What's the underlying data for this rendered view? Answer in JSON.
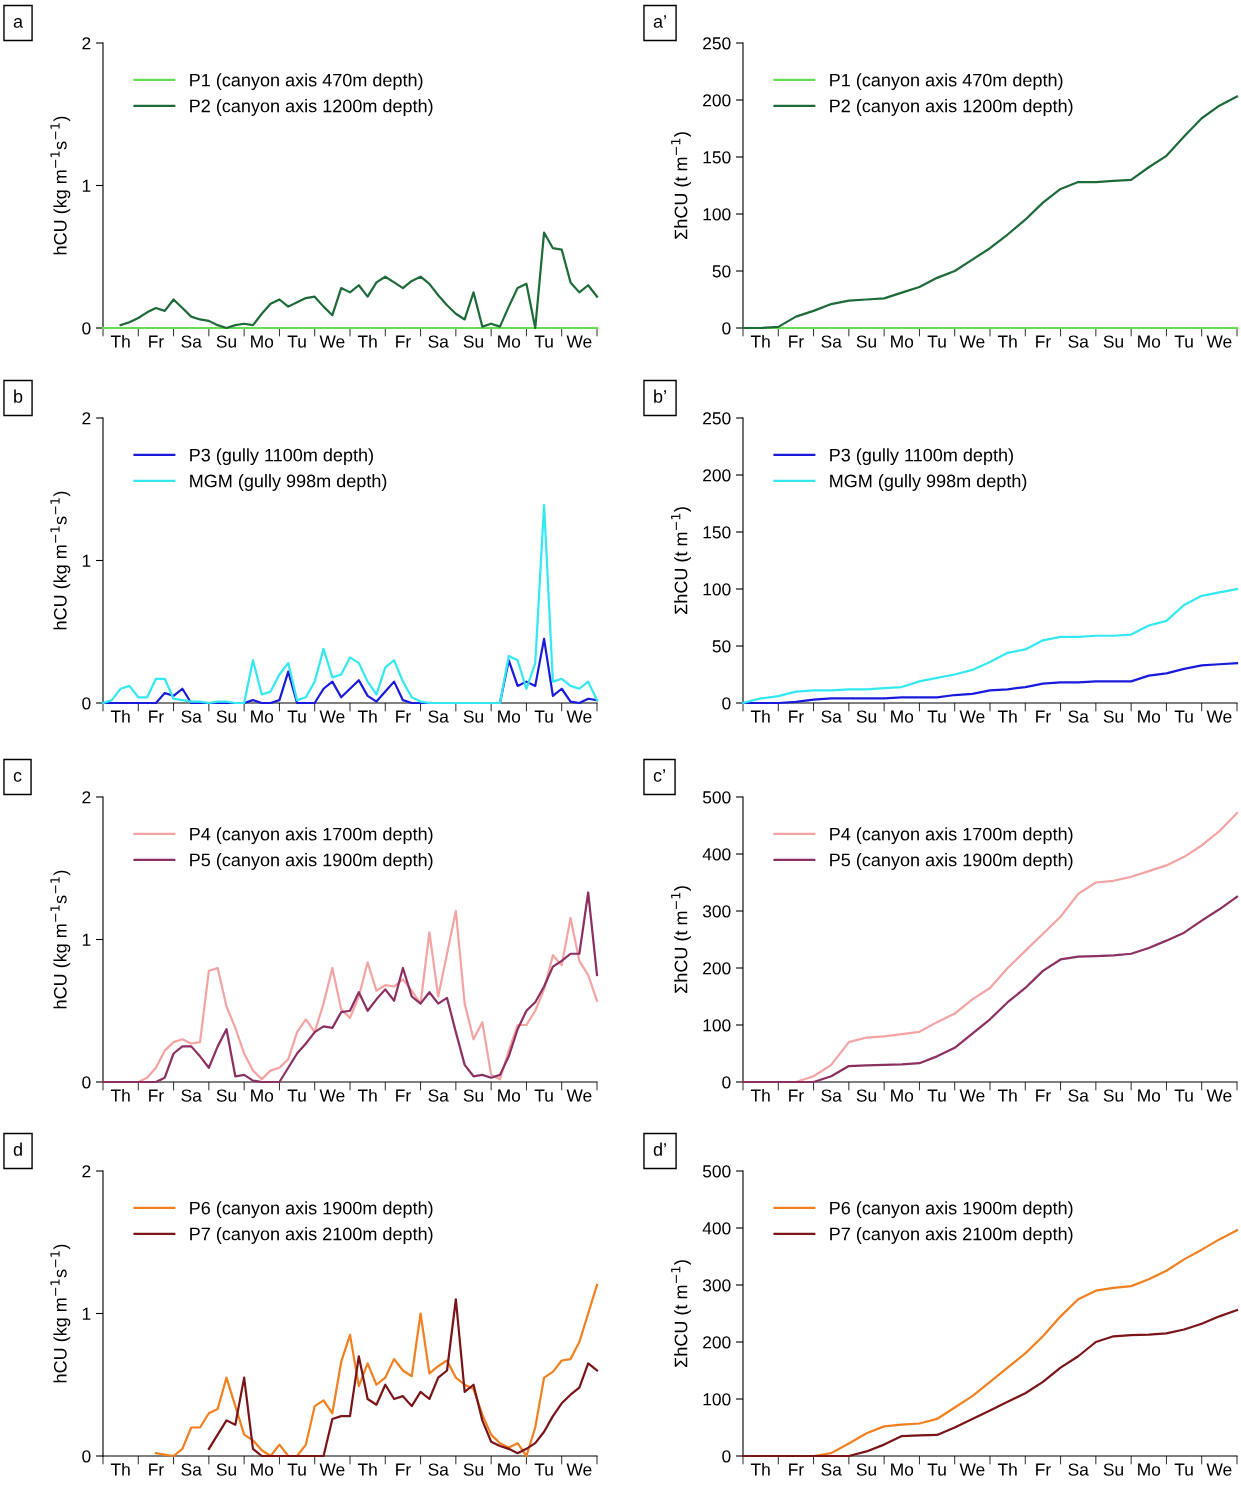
{
  "chart_data": [
    {
      "type": "line",
      "annotations": [
        "a"
      ],
      "ylabel": "hCU (kg m$^{−1}$s$^{−1}$)",
      "ylim": [
        0,
        2
      ],
      "yticks": [
        0,
        1,
        2
      ],
      "legend": "top left",
      "categories": [
        null,
        null,
        "Th",
        null,
        null,
        null,
        "Fr",
        null,
        null,
        null,
        "Sa",
        null,
        null,
        null,
        "Su",
        null,
        null,
        null,
        "Mo",
        null,
        null,
        null,
        "Tu",
        null,
        null,
        null,
        "We",
        null,
        null,
        null,
        "Th",
        null,
        null,
        null,
        "Fr",
        null,
        null,
        null,
        "Sa",
        null,
        null,
        null,
        "Su",
        null,
        null,
        null,
        "Mo",
        null,
        null,
        null,
        "Tu",
        null,
        null,
        null,
        "We",
        null,
        null
      ],
      "series": [
        {
          "name": "P1 (canyon axis 470m depth)",
          "color": "#66dd55",
          "values": [
            0,
            0,
            0,
            0,
            0,
            0,
            0,
            0,
            0,
            0,
            0,
            0,
            0,
            0,
            0,
            0,
            0,
            0,
            0,
            0,
            0,
            0,
            0,
            0,
            0,
            0,
            0,
            0,
            0,
            0,
            0,
            0,
            0,
            0,
            0,
            0,
            0,
            0,
            0,
            0,
            0,
            0,
            0,
            0,
            0,
            0,
            0,
            0,
            0,
            0,
            0,
            0,
            0,
            0,
            0,
            0,
            0
          ]
        },
        {
          "name": "P2 (canyon axis 1200m depth)",
          "color": "#1e6b3a",
          "values": [
            null,
            null,
            0.02,
            0.04,
            0.07,
            0.11,
            0.14,
            0.12,
            0.2,
            0.14,
            0.08,
            0.06,
            0.05,
            0.02,
            0,
            0.02,
            0.03,
            0.02,
            0.1,
            0.17,
            0.2,
            0.15,
            0.18,
            0.21,
            0.22,
            0.15,
            0.09,
            0.28,
            0.25,
            0.3,
            0.22,
            0.32,
            0.36,
            0.32,
            0.28,
            0.33,
            0.36,
            0.31,
            0.23,
            0.16,
            0.1,
            0.06,
            0.25,
            0.01,
            0.03,
            0.01,
            0.15,
            0.28,
            0.31,
            0,
            0.67,
            0.56,
            0.55,
            0.32,
            0.25,
            0.3,
            0.22
          ]
        }
      ]
    },
    {
      "type": "line",
      "annotations": [
        "a’"
      ],
      "ylabel": "ΣhCU (t m$^{−1}$)",
      "ylim": [
        0,
        250
      ],
      "yticks": [
        0,
        50,
        100,
        150,
        200,
        250
      ],
      "legend": "top left",
      "categories": [
        null,
        "Th",
        null,
        "Fr",
        null,
        "Sa",
        null,
        "Su",
        null,
        "Mo",
        null,
        "Tu",
        null,
        "We",
        null,
        "Th",
        null,
        "Fr",
        null,
        "Sa",
        null,
        "Su",
        null,
        "Mo",
        null,
        "Tu",
        null,
        "We",
        null
      ],
      "series": [
        {
          "name": "P1 (canyon axis 470m depth)",
          "color": "#66dd55",
          "values": [
            0,
            0,
            0,
            0,
            0,
            0,
            0,
            0,
            0,
            0,
            0,
            0,
            0,
            0,
            0,
            0,
            0,
            0,
            0,
            0,
            0,
            0,
            0,
            0,
            0,
            0,
            0,
            0,
            0
          ]
        },
        {
          "name": "P2 (canyon axis 1200m depth)",
          "color": "#1e6b3a",
          "values": [
            0,
            0,
            1,
            10,
            15,
            21,
            24,
            25,
            26,
            31,
            36,
            44,
            50,
            60,
            70,
            82,
            95,
            110,
            122,
            128,
            128,
            129,
            130,
            141,
            151,
            168,
            184,
            195,
            203
          ]
        }
      ]
    },
    {
      "type": "line",
      "annotations": [
        "b"
      ],
      "ylabel": "hCU (kg m$^{−1}$s$^{−1}$)",
      "ylim": [
        0,
        2
      ],
      "yticks": [
        0,
        1,
        2
      ],
      "legend": "top left",
      "categories": [
        null,
        null,
        "Th",
        null,
        null,
        null,
        "Fr",
        null,
        null,
        null,
        "Sa",
        null,
        null,
        null,
        "Su",
        null,
        null,
        null,
        "Mo",
        null,
        null,
        null,
        "Tu",
        null,
        null,
        null,
        "We",
        null,
        null,
        null,
        "Th",
        null,
        null,
        null,
        "Fr",
        null,
        null,
        null,
        "Sa",
        null,
        null,
        null,
        "Su",
        null,
        null,
        null,
        "Mo",
        null,
        null,
        null,
        "Tu",
        null,
        null,
        null,
        "We",
        null,
        null
      ],
      "series": [
        {
          "name": "P3 (gully 1100m depth)",
          "color": "#1a1adc",
          "values": [
            0,
            0,
            0,
            0,
            0,
            0,
            0,
            0.07,
            0.05,
            0.1,
            0,
            0,
            0,
            0,
            0,
            0,
            0,
            0.02,
            0,
            0,
            0.02,
            0.22,
            0,
            0,
            0,
            0.1,
            0.15,
            0.04,
            0.1,
            0.16,
            0.05,
            0.01,
            0.08,
            0.15,
            0.02,
            0,
            0,
            0,
            0,
            0,
            0,
            0,
            0,
            0,
            0,
            0,
            0.3,
            0.12,
            0.15,
            0.12,
            0.45,
            0.05,
            0.1,
            0.01,
            0,
            0.03,
            0.02
          ]
        },
        {
          "name": "MGM (gully 998m depth)",
          "color": "#33e8f0",
          "values": [
            0,
            0.02,
            0.1,
            0.12,
            0.04,
            0.04,
            0.17,
            0.17,
            0.03,
            0.02,
            0.01,
            0.01,
            0,
            0.01,
            0.01,
            0,
            0,
            0.3,
            0.06,
            0.08,
            0.2,
            0.28,
            0.02,
            0.04,
            0.15,
            0.38,
            0.18,
            0.2,
            0.32,
            0.28,
            0.15,
            0.06,
            0.25,
            0.3,
            0.15,
            0.04,
            0.01,
            0,
            0,
            0,
            0,
            0,
            0,
            0,
            0,
            0,
            0.33,
            0.3,
            0.1,
            0.28,
            1.39,
            0.15,
            0.17,
            0.12,
            0.1,
            0.15,
            0.02
          ]
        }
      ]
    },
    {
      "type": "line",
      "annotations": [
        "b’"
      ],
      "ylabel": "ΣhCU (t m$^{−1}$)",
      "ylim": [
        0,
        250
      ],
      "yticks": [
        0,
        50,
        100,
        150,
        200,
        250
      ],
      "legend": "top left",
      "categories": [
        null,
        "Th",
        null,
        "Fr",
        null,
        "Sa",
        null,
        "Su",
        null,
        "Mo",
        null,
        "Tu",
        null,
        "We",
        null,
        "Th",
        null,
        "Fr",
        null,
        "Sa",
        null,
        "Su",
        null,
        "Mo",
        null,
        "Tu",
        null,
        "We",
        null
      ],
      "series": [
        {
          "name": "P3 (gully 1100m depth)",
          "color": "#1a1adc",
          "values": [
            0,
            0,
            0,
            1,
            3,
            4,
            4,
            4,
            4,
            5,
            5,
            5,
            7,
            8,
            11,
            12,
            14,
            17,
            18,
            18,
            19,
            19,
            19,
            24,
            26,
            30,
            33,
            34,
            35
          ]
        },
        {
          "name": "MGM (gully 998m depth)",
          "color": "#33e8f0",
          "values": [
            0,
            4,
            6,
            10,
            11,
            11,
            12,
            12,
            13,
            14,
            19,
            22,
            25,
            29,
            36,
            44,
            47,
            55,
            58,
            58,
            59,
            59,
            60,
            68,
            72,
            86,
            94,
            97,
            100
          ]
        }
      ]
    },
    {
      "type": "line",
      "annotations": [
        "c"
      ],
      "ylabel": "hCU (kg m$^{−1}$s$^{−1}$)",
      "ylim": [
        0,
        2
      ],
      "yticks": [
        0,
        1,
        2
      ],
      "legend": "top left",
      "categories": [
        null,
        null,
        "Th",
        null,
        null,
        null,
        "Fr",
        null,
        null,
        null,
        "Sa",
        null,
        null,
        null,
        "Su",
        null,
        null,
        null,
        "Mo",
        null,
        null,
        null,
        "Tu",
        null,
        null,
        null,
        "We",
        null,
        null,
        null,
        "Th",
        null,
        null,
        null,
        "Fr",
        null,
        null,
        null,
        "Sa",
        null,
        null,
        null,
        "Su",
        null,
        null,
        null,
        "Mo",
        null,
        null,
        null,
        "Tu",
        null,
        null,
        null,
        "We",
        null,
        null
      ],
      "series": [
        {
          "name": "P4 (canyon axis 1700m depth)",
          "color": "#f4a3a3",
          "values": [
            null,
            null,
            null,
            0,
            0,
            0.03,
            0.1,
            0.22,
            0.28,
            0.3,
            0.27,
            0.28,
            0.78,
            0.8,
            0.53,
            0.38,
            0.2,
            0.08,
            0.02,
            0.08,
            0.1,
            0.16,
            0.35,
            0.44,
            0.35,
            0.55,
            0.8,
            0.51,
            0.45,
            0.6,
            0.84,
            0.64,
            0.68,
            0.67,
            0.72,
            0.64,
            0.55,
            1.05,
            0.6,
            0.9,
            1.2,
            0.55,
            0.3,
            0.42,
            0.05,
            0.02,
            0.22,
            0.4,
            0.4,
            0.5,
            0.65,
            0.89,
            0.82,
            1.15,
            0.85,
            0.75,
            0.57
          ]
        },
        {
          "name": "P5 (canyon axis 1900m depth)",
          "color": "#8b3060",
          "values": [
            0,
            0,
            0,
            0,
            0,
            0,
            0,
            0.03,
            0.2,
            0.25,
            0.25,
            0.18,
            0.1,
            0.25,
            0.37,
            0.04,
            0.05,
            0.01,
            0,
            0,
            0,
            0.1,
            0.2,
            0.27,
            0.35,
            0.39,
            0.38,
            0.49,
            0.5,
            0.63,
            0.5,
            0.58,
            0.65,
            0.57,
            0.8,
            0.6,
            0.55,
            0.63,
            0.55,
            0.59,
            0.35,
            0.12,
            0.04,
            0.05,
            0.03,
            0.05,
            0.18,
            0.37,
            0.5,
            0.56,
            0.67,
            0.81,
            0.85,
            0.9,
            0.9,
            1.33,
            0.75
          ]
        }
      ]
    },
    {
      "type": "line",
      "annotations": [
        "c’"
      ],
      "ylabel": "ΣhCU (t m$^{−1}$)",
      "ylim": [
        0,
        500
      ],
      "yticks": [
        0,
        100,
        200,
        300,
        400,
        500
      ],
      "legend": "top left",
      "categories": [
        null,
        "Th",
        null,
        "Fr",
        null,
        "Sa",
        null,
        "Su",
        null,
        "Mo",
        null,
        "Tu",
        null,
        "We",
        null,
        "Th",
        null,
        "Fr",
        null,
        "Sa",
        null,
        "Su",
        null,
        "Mo",
        null,
        "Tu",
        null,
        "We",
        null
      ],
      "series": [
        {
          "name": "P4 (canyon axis 1700m depth)",
          "color": "#f4a3a3",
          "values": [
            null,
            null,
            0,
            0,
            10,
            30,
            70,
            78,
            80,
            84,
            88,
            105,
            120,
            145,
            165,
            200,
            230,
            260,
            290,
            330,
            350,
            353,
            360,
            370,
            380,
            395,
            415,
            440,
            472
          ]
        },
        {
          "name": "P5 (canyon axis 1900m depth)",
          "color": "#8b3060",
          "values": [
            0,
            0,
            0,
            0,
            0,
            10,
            28,
            29,
            30,
            31,
            33,
            45,
            60,
            85,
            110,
            140,
            165,
            195,
            215,
            220,
            221,
            222,
            225,
            235,
            248,
            262,
            283,
            303,
            325
          ]
        }
      ]
    },
    {
      "type": "line",
      "annotations": [
        "d"
      ],
      "ylabel": "hCU (kg m$^{−1}$s$^{−1}$)",
      "ylim": [
        0,
        2
      ],
      "yticks": [
        0,
        1,
        2
      ],
      "legend": "top left",
      "categories": [
        null,
        null,
        "Th",
        null,
        null,
        null,
        "Fr",
        null,
        null,
        null,
        "Sa",
        null,
        null,
        null,
        "Su",
        null,
        null,
        null,
        "Mo",
        null,
        null,
        null,
        "Tu",
        null,
        null,
        null,
        "We",
        null,
        null,
        null,
        "Th",
        null,
        null,
        null,
        "Fr",
        null,
        null,
        null,
        "Sa",
        null,
        null,
        null,
        "Su",
        null,
        null,
        null,
        "Mo",
        null,
        null,
        null,
        "Tu",
        null,
        null,
        null,
        "We",
        null,
        null
      ],
      "series": [
        {
          "name": "P6 (canyon axis 1900m depth)",
          "color": "#f08020",
          "values": [
            null,
            null,
            null,
            null,
            null,
            null,
            0.02,
            0.01,
            0,
            0.05,
            0.2,
            0.2,
            0.3,
            0.33,
            0.55,
            0.35,
            0.15,
            0.11,
            0.04,
            0,
            0.08,
            0,
            0,
            0.08,
            0.35,
            0.39,
            0.3,
            0.66,
            0.85,
            0.49,
            0.65,
            0.5,
            0.55,
            0.68,
            0.6,
            0.56,
            1.0,
            0.58,
            0.63,
            0.67,
            0.55,
            0.5,
            0.47,
            0.29,
            0.15,
            0.09,
            0.06,
            0.09,
            0,
            0.2,
            0.55,
            0.59,
            0.67,
            0.68,
            0.8,
            1.0,
            1.2
          ]
        },
        {
          "name": "P7 (canyon axis 2100m depth)",
          "color": "#7a1418",
          "values": [
            null,
            null,
            null,
            null,
            null,
            null,
            null,
            null,
            null,
            null,
            null,
            null,
            0.05,
            0.15,
            0.25,
            0.22,
            0.55,
            0.05,
            0,
            0,
            0,
            0,
            0,
            0,
            0,
            0,
            0.26,
            0.28,
            0.28,
            0.7,
            0.4,
            0.36,
            0.5,
            0.4,
            0.42,
            0.35,
            0.45,
            0.4,
            0.55,
            0.6,
            1.1,
            0.45,
            0.5,
            0.25,
            0.1,
            0.07,
            0.05,
            0.02,
            0.05,
            0.09,
            0.17,
            0.28,
            0.37,
            0.43,
            0.48,
            0.65,
            0.6
          ]
        }
      ]
    },
    {
      "type": "line",
      "annotations": [
        "d’"
      ],
      "ylabel": "ΣhCU (t m$^{−1}$)",
      "ylim": [
        0,
        500
      ],
      "yticks": [
        0,
        100,
        200,
        300,
        400,
        500
      ],
      "legend": "top left",
      "categories": [
        null,
        "Th",
        null,
        "Fr",
        null,
        "Sa",
        null,
        "Su",
        null,
        "Mo",
        null,
        "Tu",
        null,
        "We",
        null,
        "Th",
        null,
        "Fr",
        null,
        "Sa",
        null,
        "Su",
        null,
        "Mo",
        null,
        "Tu",
        null,
        "We",
        null
      ],
      "series": [
        {
          "name": "P6 (canyon axis 1900m depth)",
          "color": "#f08020",
          "values": [
            null,
            null,
            null,
            0,
            0,
            5,
            22,
            40,
            52,
            55,
            57,
            65,
            85,
            105,
            130,
            155,
            180,
            210,
            245,
            275,
            290,
            295,
            298,
            310,
            325,
            345,
            362,
            380,
            396
          ]
        },
        {
          "name": "P7 (canyon axis 2100m depth)",
          "color": "#7a1418",
          "values": [
            0,
            0,
            0,
            0,
            0,
            0,
            0,
            8,
            20,
            35,
            36,
            37,
            50,
            65,
            80,
            95,
            110,
            130,
            155,
            175,
            200,
            210,
            212,
            213,
            215,
            222,
            232,
            245,
            256
          ]
        }
      ]
    }
  ]
}
